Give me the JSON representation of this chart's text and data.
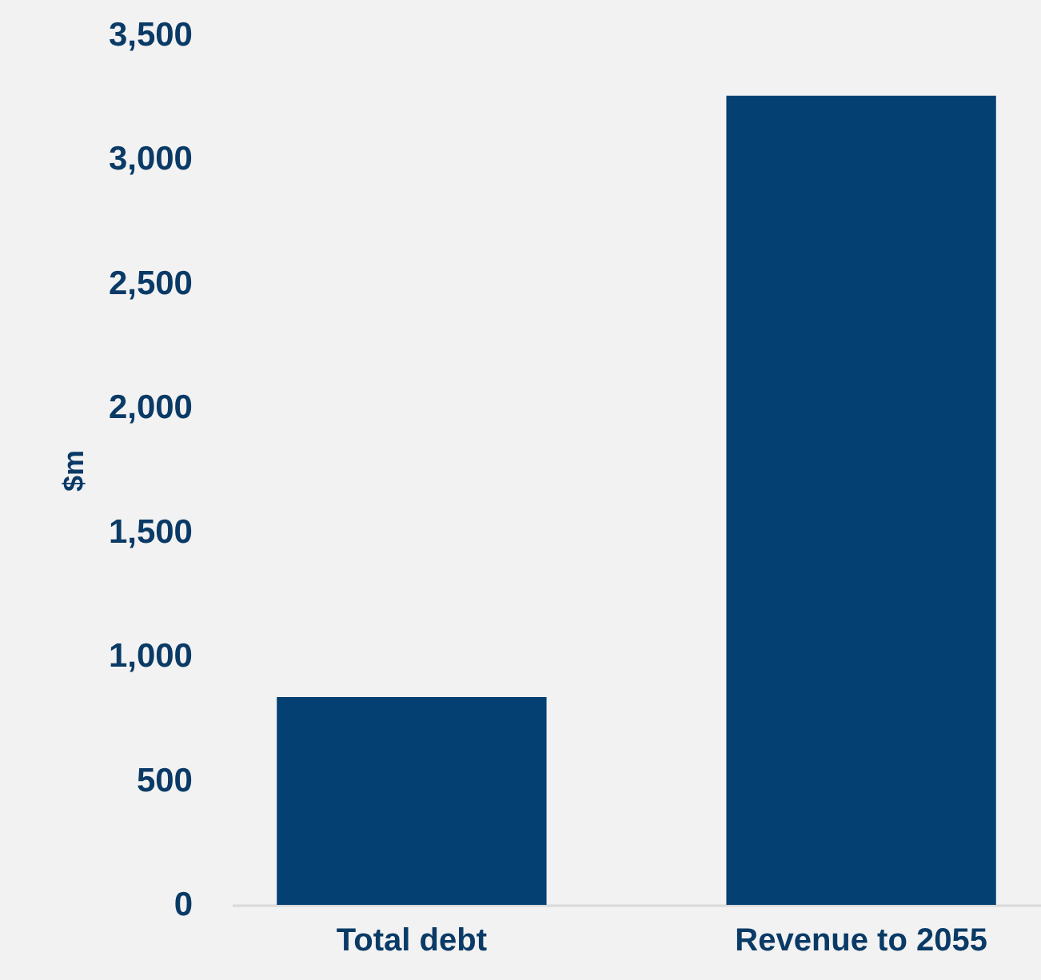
{
  "chart_data": {
    "type": "bar",
    "ylabel": "$m",
    "categories": [
      "Total debt",
      "Revenue to 2055"
    ],
    "values": [
      836,
      3256
    ],
    "color": "#054073",
    "ylim": [
      0,
      3500
    ],
    "yticks": [
      0,
      500,
      {
        "value": 1000,
        "label": "1,000"
      },
      {
        "value": 1500,
        "label": "1,500"
      },
      {
        "value": 2000,
        "label": "2,000"
      },
      {
        "value": 2500,
        "label": "2,500"
      },
      {
        "value": 3000,
        "label": "3,000"
      },
      {
        "value": 3500,
        "label": "3,500"
      }
    ],
    "grid": false
  }
}
